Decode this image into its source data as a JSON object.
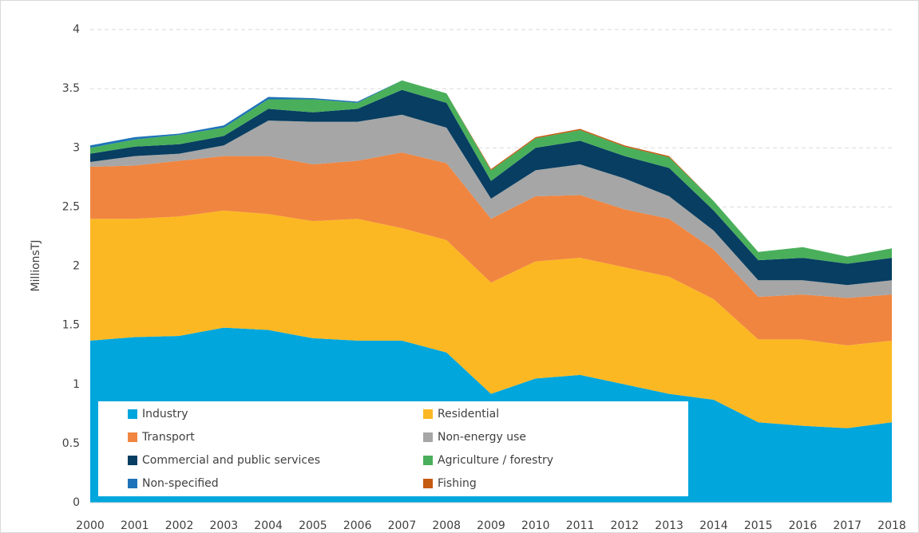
{
  "chart_data": {
    "type": "stacked-area",
    "y_label": "MillionsTJ",
    "categories": [
      "2000",
      "2001",
      "2002",
      "2003",
      "2004",
      "2005",
      "2006",
      "2007",
      "2008",
      "2009",
      "2010",
      "2011",
      "2012",
      "2013",
      "2014",
      "2015",
      "2016",
      "2017",
      "2018"
    ],
    "ylim": [
      0,
      4
    ],
    "yticks": [
      0,
      0.5,
      1,
      1.5,
      2,
      2.5,
      3,
      3.5,
      4
    ],
    "grid": true,
    "series": [
      {
        "name": "Industry",
        "color": "#00a6dc",
        "values": [
          1.37,
          1.4,
          1.41,
          1.48,
          1.46,
          1.39,
          1.37,
          1.37,
          1.27,
          0.92,
          1.05,
          1.08,
          1.0,
          0.92,
          0.87,
          0.68,
          0.65,
          0.63,
          0.68
        ]
      },
      {
        "name": "Residential",
        "color": "#fbb823",
        "values": [
          1.03,
          1.0,
          1.01,
          0.99,
          0.98,
          0.99,
          1.03,
          0.95,
          0.95,
          0.94,
          0.99,
          0.99,
          0.99,
          0.99,
          0.85,
          0.7,
          0.73,
          0.7,
          0.69
        ]
      },
      {
        "name": "Transport",
        "color": "#f08540",
        "values": [
          0.44,
          0.45,
          0.47,
          0.46,
          0.49,
          0.48,
          0.49,
          0.64,
          0.65,
          0.54,
          0.55,
          0.53,
          0.49,
          0.49,
          0.42,
          0.36,
          0.38,
          0.4,
          0.39
        ]
      },
      {
        "name": "Non-energy use",
        "color": "#a6a6a6",
        "values": [
          0.04,
          0.08,
          0.06,
          0.09,
          0.3,
          0.36,
          0.33,
          0.32,
          0.3,
          0.17,
          0.22,
          0.26,
          0.26,
          0.19,
          0.16,
          0.14,
          0.12,
          0.11,
          0.12
        ]
      },
      {
        "name": "Commercial and public services",
        "color": "#073e62",
        "values": [
          0.07,
          0.08,
          0.08,
          0.08,
          0.1,
          0.08,
          0.11,
          0.21,
          0.21,
          0.15,
          0.19,
          0.2,
          0.19,
          0.24,
          0.17,
          0.17,
          0.19,
          0.18,
          0.19
        ]
      },
      {
        "name": "Agriculture / forestry",
        "color": "#4aaf5b",
        "values": [
          0.05,
          0.06,
          0.08,
          0.07,
          0.08,
          0.11,
          0.05,
          0.08,
          0.08,
          0.09,
          0.08,
          0.09,
          0.08,
          0.09,
          0.08,
          0.07,
          0.09,
          0.06,
          0.08
        ]
      },
      {
        "name": "Non-specified",
        "color": "#1e73b8",
        "values": [
          0.02,
          0.02,
          0.01,
          0.02,
          0.02,
          0.01,
          0.01,
          0,
          0,
          0,
          0,
          0,
          0,
          0,
          0,
          0,
          0,
          0,
          0
        ]
      },
      {
        "name": "Fishing",
        "color": "#c55a11",
        "values": [
          0,
          0,
          0,
          0,
          0,
          0,
          0,
          0,
          0,
          0.01,
          0.01,
          0.01,
          0.01,
          0.01,
          0,
          0,
          0,
          0,
          0
        ]
      }
    ]
  }
}
